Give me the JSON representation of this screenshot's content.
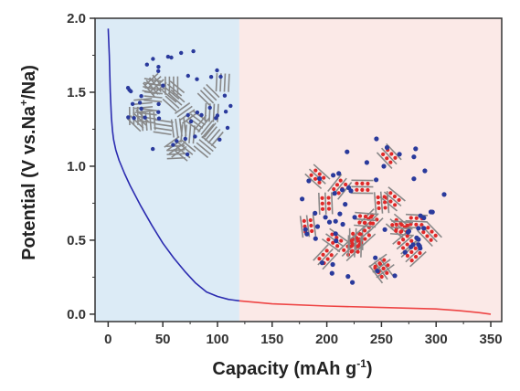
{
  "chart_data": {
    "type": "line",
    "title": "",
    "xlabel": "Capacity (mAh g",
    "xlabel_sup": "-1",
    "xlabel_close": ")",
    "ylabel": "Potential (V vs.Na",
    "ylabel_sup": "+",
    "ylabel_close": "/Na)",
    "xlim": [
      -12,
      360
    ],
    "ylim": [
      -0.05,
      2.0
    ],
    "grid": false,
    "legend": "none",
    "x_ticks": [
      "0",
      "50",
      "100",
      "150",
      "200",
      "250",
      "300",
      "350"
    ],
    "y_ticks": [
      "0.0",
      "0.5",
      "1.0",
      "1.5",
      "2.0"
    ],
    "regions": [
      {
        "x_range": [
          -12,
          120
        ],
        "color": "#dcebf6"
      },
      {
        "x_range": [
          120,
          360
        ],
        "color": "#fbe9e7"
      }
    ],
    "series": [
      {
        "color": "#2b2bb0",
        "x": [
          0,
          1,
          2,
          3,
          4,
          5,
          7,
          10,
          15,
          20,
          30,
          40,
          50,
          60,
          70,
          80,
          90,
          100,
          110,
          120
        ],
        "y": [
          1.93,
          1.75,
          1.5,
          1.33,
          1.24,
          1.18,
          1.11,
          1.04,
          0.95,
          0.87,
          0.73,
          0.6,
          0.48,
          0.38,
          0.29,
          0.21,
          0.15,
          0.12,
          0.1,
          0.09
        ]
      },
      {
        "color": "#ee4444",
        "x": [
          120,
          150,
          200,
          250,
          300,
          320,
          340,
          350
        ],
        "y": [
          0.09,
          0.07,
          0.055,
          0.045,
          0.035,
          0.025,
          0.01,
          0.0
        ]
      }
    ]
  },
  "colors": {
    "axis": "#333333",
    "carbon_layer": "#888888",
    "sodium_ion": "#e02828",
    "pore_dot": "#2a3a9c"
  }
}
